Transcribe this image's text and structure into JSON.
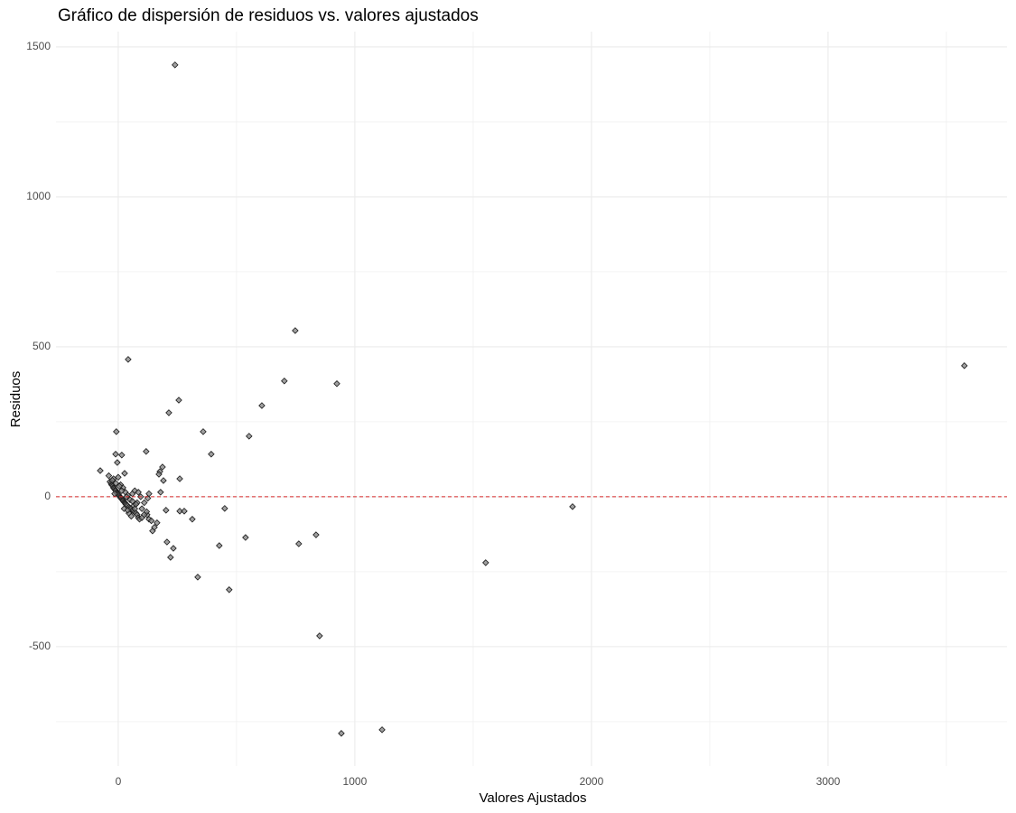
{
  "chart_data": {
    "type": "scatter",
    "title": "Gráfico de dispersión de residuos vs. valores ajustados",
    "x_label": "Valores Ajustados",
    "y_label": "Residuos",
    "x": [
      240,
      42,
      748,
      702,
      924,
      3576,
      256,
      607,
      214,
      -8,
      359,
      553,
      393,
      118,
      -11,
      15,
      -4,
      187,
      176,
      172,
      -76,
      260,
      191,
      27,
      179,
      1920,
      450,
      260,
      279,
      202,
      122,
      313,
      164,
      145,
      153,
      206,
      538,
      836,
      763,
      427,
      233,
      221,
      336,
      1553,
      469,
      851,
      943,
      1115,
      -35,
      -30,
      -28,
      -25,
      -22,
      -20,
      -18,
      -15,
      -12,
      -10,
      -8,
      -5,
      -3,
      0,
      2,
      5,
      8,
      10,
      12,
      15,
      18,
      20,
      22,
      25,
      28,
      30,
      32,
      35,
      40,
      45,
      50,
      55,
      60,
      65,
      70,
      75,
      80,
      85,
      90,
      100,
      -40,
      -20,
      0,
      10,
      20,
      30,
      40,
      50,
      60,
      70,
      80,
      95,
      110,
      120,
      130,
      140,
      25,
      45,
      55,
      65,
      35,
      15,
      5,
      -10,
      -25,
      60,
      75,
      85,
      100,
      -15,
      110,
      125,
      130,
      70,
      40
    ],
    "values": [
      1440,
      458,
      554,
      386,
      377,
      437,
      322,
      304,
      280,
      217,
      217,
      202,
      142,
      151,
      142,
      139,
      114,
      99,
      84,
      75,
      87,
      60,
      54,
      78,
      15,
      -33,
      -39,
      -48,
      -48,
      -45,
      -60,
      -75,
      -87,
      -114,
      -102,
      -151,
      -136,
      -127,
      -157,
      -163,
      -172,
      -202,
      -268,
      -220,
      -310,
      -464,
      -789,
      -777,
      50,
      45,
      40,
      38,
      35,
      30,
      28,
      25,
      22,
      20,
      15,
      12,
      10,
      8,
      5,
      2,
      0,
      -3,
      -5,
      -8,
      -10,
      -12,
      -15,
      -18,
      -20,
      -22,
      -25,
      -28,
      -30,
      -35,
      -38,
      -40,
      -45,
      -48,
      -52,
      -55,
      -60,
      -70,
      -75,
      -70,
      70,
      60,
      65,
      40,
      30,
      15,
      5,
      -10,
      10,
      20,
      -20,
      0,
      -20,
      -50,
      -75,
      -80,
      -40,
      -55,
      -65,
      -30,
      0,
      20,
      35,
      45,
      55,
      -15,
      -25,
      15,
      -40,
      10,
      -60,
      -5,
      10,
      -40,
      -45
    ],
    "color": "#7f7f7f",
    "xlim": [
      -263,
      3756
    ],
    "ylim": [
      -898,
      1551
    ],
    "xticks": [
      0,
      1000,
      2000,
      3000
    ],
    "yticks": [
      -500,
      0,
      500,
      1000,
      1500
    ],
    "minor_xticks": [
      500,
      1500,
      2500,
      3500
    ],
    "minor_yticks": [
      -750,
      -250,
      250,
      750,
      1250
    ],
    "grid": true,
    "hline": {
      "value": 0,
      "color": "#d62728"
    }
  }
}
